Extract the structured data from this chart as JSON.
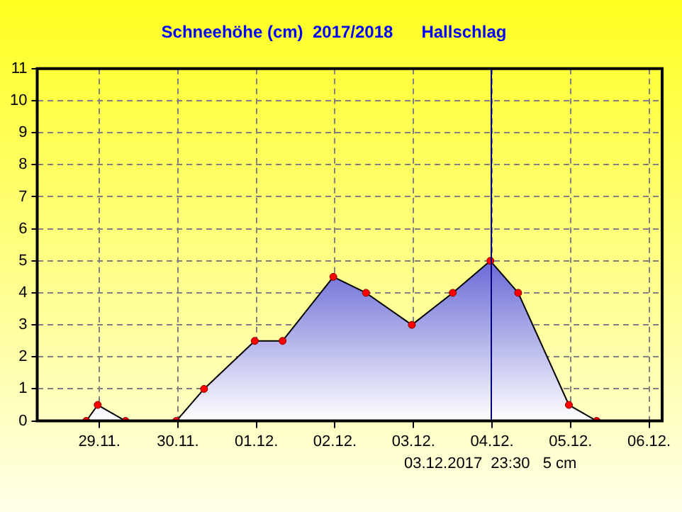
{
  "chart_data": {
    "type": "area",
    "title": "Schneehöhe (cm)  2017/2018      Hallschlag",
    "x": [
      "2017-11-28T20:00",
      "2017-11-28T23:30",
      "2017-11-29T08:00",
      "2017-11-29T23:30",
      "2017-11-30T08:00",
      "2017-11-30T23:30",
      "2017-12-01T08:00",
      "2017-12-01T23:30",
      "2017-12-02T09:30",
      "2017-12-02T23:30",
      "2017-12-03T12:00",
      "2017-12-03T23:30",
      "2017-12-04T08:00",
      "2017-12-04T23:30",
      "2017-12-05T08:00"
    ],
    "series": [
      {
        "color": "#5a5ad2",
        "values": [
          0,
          0.5,
          0,
          0,
          1,
          2.5,
          2.5,
          4.5,
          4,
          3,
          4,
          5,
          4,
          0.5,
          0
        ]
      }
    ],
    "xlim": [
      "2017-11-28T05:00",
      "2017-12-06T04:00"
    ],
    "xticks": [
      {
        "value": "2017-11-29",
        "label": "29.11."
      },
      {
        "value": "2017-11-30",
        "label": "30.11."
      },
      {
        "value": "2017-12-01",
        "label": "01.12."
      },
      {
        "value": "2017-12-02",
        "label": "02.12."
      },
      {
        "value": "2017-12-03",
        "label": "03.12."
      },
      {
        "value": "2017-12-04",
        "label": "04.12."
      },
      {
        "value": "2017-12-05",
        "label": "05.12."
      },
      {
        "value": "2017-12-06",
        "label": "06.12."
      }
    ],
    "ylim": [
      0,
      11
    ],
    "yticks": [
      0,
      1,
      2,
      3,
      4,
      5,
      6,
      7,
      8,
      9,
      10,
      11
    ],
    "ref_lines": [
      {
        "axis": "x",
        "value": "2017-12-03T23:30",
        "label": "03.12.2017  23:30   5 cm",
        "color": "#000080"
      }
    ],
    "grid": true,
    "legend": false,
    "marker": "circle",
    "line_style": "solid"
  }
}
